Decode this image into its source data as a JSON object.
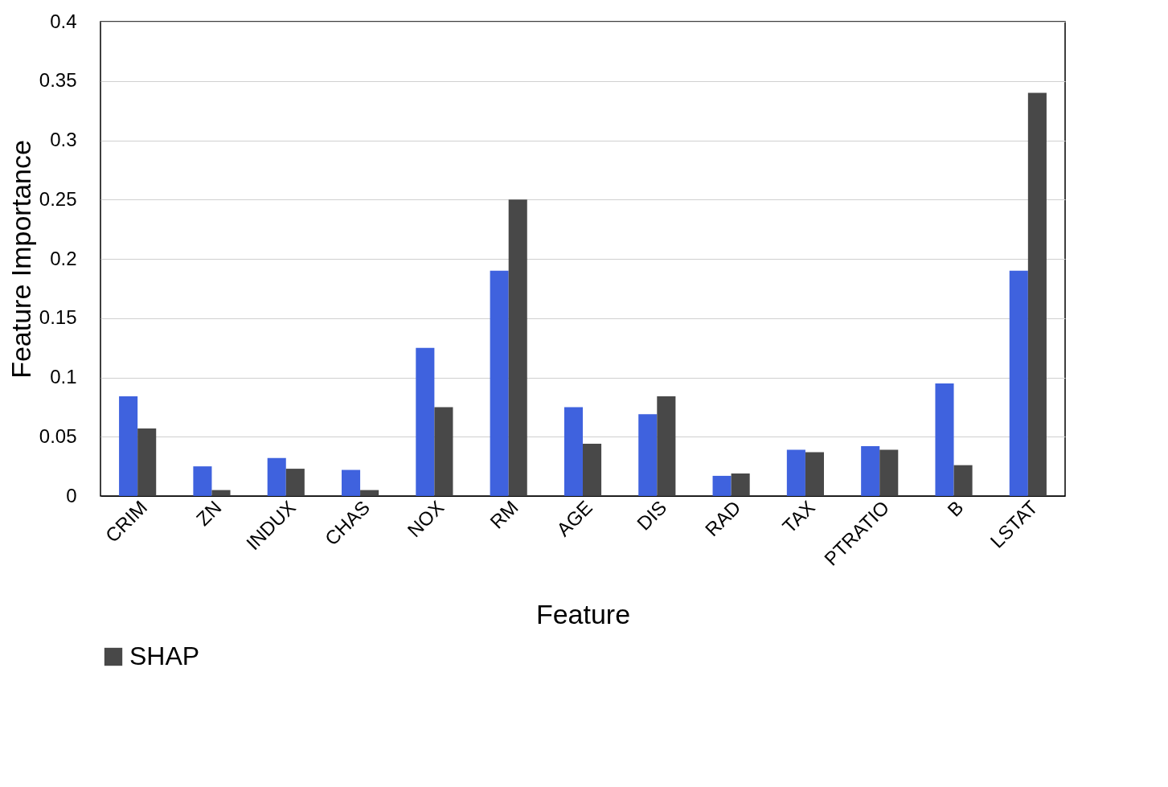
{
  "chart_data": {
    "type": "bar",
    "xlabel": "Feature",
    "ylabel": "Feature Importance",
    "categories": [
      "CRIM",
      "ZN",
      "INDUX",
      "CHAS",
      "NOX",
      "RM",
      "AGE",
      "DIS",
      "RAD",
      "TAX",
      "PTRATIO",
      "B",
      "LSTAT"
    ],
    "series": [
      {
        "color": "#3f62de",
        "values": [
          0.084,
          0.025,
          0.032,
          0.022,
          0.125,
          0.19,
          0.075,
          0.069,
          0.017,
          0.039,
          0.042,
          0.095,
          0.19
        ]
      },
      {
        "name": "SHAP",
        "color": "#484848",
        "values": [
          0.057,
          0.005,
          0.023,
          0.005,
          0.075,
          0.25,
          0.044,
          0.084,
          0.019,
          0.037,
          0.039,
          0.026,
          0.34
        ]
      }
    ],
    "ylim": [
      0,
      0.4
    ],
    "yticks": [
      0,
      0.05,
      0.1,
      0.15,
      0.2,
      0.25,
      0.3,
      0.35,
      0.4
    ],
    "grid": "y",
    "legend": "bottom"
  }
}
